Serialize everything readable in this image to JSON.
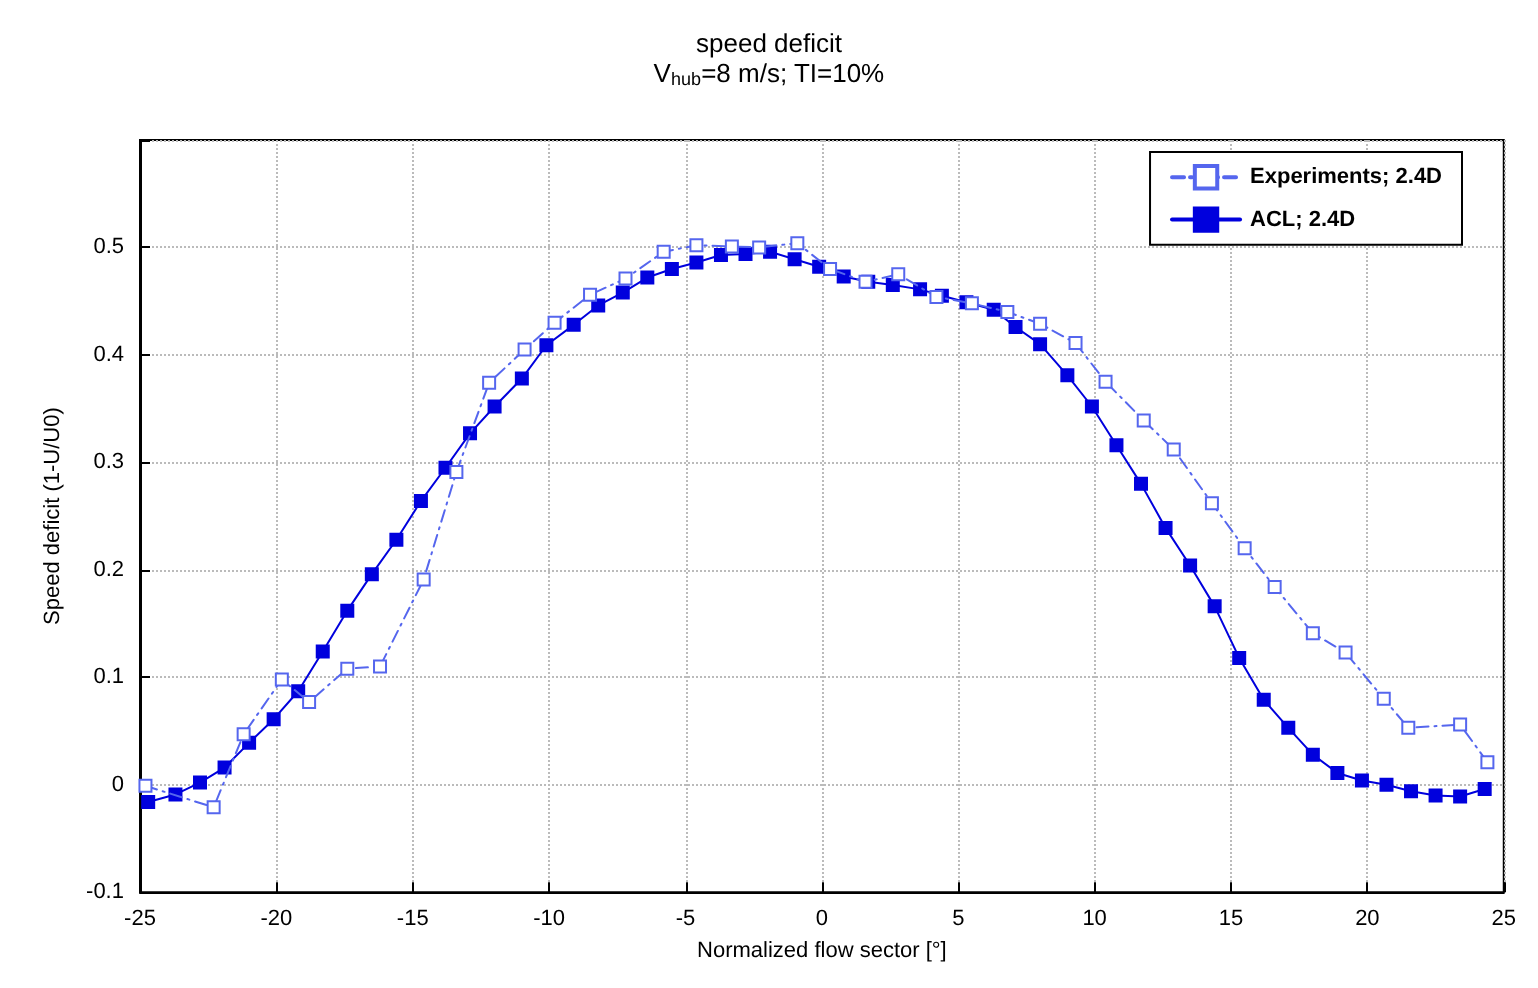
{
  "chart_data": {
    "type": "line",
    "title": "speed deficit",
    "subtitle": "V$_{hub}$=8 m/s; TI=10%",
    "xlabel": "Normalized flow sector [°]",
    "ylabel": "Speed deficit (1-U/U0)",
    "xlim": [
      -25,
      25
    ],
    "xticks": [
      -25,
      -20,
      -15,
      -10,
      -5,
      0,
      5,
      10,
      15,
      20,
      25
    ],
    "ylim": [
      -0.1,
      0.6
    ],
    "yticks": [
      -0.1,
      0,
      0.1,
      0.2,
      0.3,
      0.4,
      0.5,
      {
        "value": 0.6,
        "label": null
      }
    ],
    "grid": true,
    "legend": "top right",
    "series": [
      {
        "name": "Experiments; 2.4D",
        "color": "#5566ee",
        "marker": "square",
        "line_style": "dashed",
        "x": [
          -24.8,
          -22.3,
          -21.2,
          -19.8,
          -18.8,
          -17.4,
          -16.2,
          -14.6,
          -13.4,
          -12.2,
          -10.9,
          -9.8,
          -8.5,
          -7.2,
          -5.8,
          -4.6,
          -3.3,
          -2.3,
          -0.9,
          0.3,
          1.6,
          2.8,
          4.2,
          5.5,
          6.8,
          8.0,
          9.3,
          10.4,
          11.8,
          12.9,
          14.3,
          15.5,
          16.6,
          18.0,
          19.2,
          20.6,
          21.5,
          23.4,
          24.4
        ],
        "values": [
          -0.001,
          -0.021,
          0.047,
          0.098,
          0.077,
          0.108,
          0.11,
          0.191,
          0.291,
          0.374,
          0.405,
          0.43,
          0.456,
          0.471,
          0.496,
          0.502,
          0.501,
          0.5,
          0.504,
          0.48,
          0.468,
          0.475,
          0.454,
          0.448,
          0.44,
          0.429,
          0.411,
          0.375,
          0.339,
          0.312,
          0.262,
          0.22,
          0.184,
          0.141,
          0.123,
          0.08,
          0.053,
          0.056,
          0.021
        ]
      },
      {
        "name": "ACL; 2.4D",
        "color": "#0000dd",
        "marker": "square",
        "line_style": "solid",
        "x": [
          -24.7,
          -23.7,
          -22.8,
          -21.9,
          -21.0,
          -20.1,
          -19.2,
          -18.3,
          -17.4,
          -16.5,
          -15.6,
          -14.7,
          -13.8,
          -12.9,
          -12.0,
          -11.0,
          -10.1,
          -9.1,
          -8.2,
          -7.3,
          -6.4,
          -5.5,
          -4.6,
          -3.7,
          -2.8,
          -1.9,
          -1.0,
          -0.1,
          0.8,
          1.7,
          2.6,
          3.6,
          4.4,
          5.3,
          6.3,
          7.1,
          8.0,
          9.0,
          9.9,
          10.8,
          11.7,
          12.6,
          13.5,
          14.4,
          15.3,
          16.2,
          17.1,
          18.0,
          18.9,
          19.8,
          20.7,
          21.6,
          22.5,
          23.4,
          24.3
        ],
        "values": [
          -0.016,
          -0.009,
          0.002,
          0.016,
          0.039,
          0.061,
          0.087,
          0.124,
          0.162,
          0.196,
          0.228,
          0.264,
          0.295,
          0.327,
          0.352,
          0.378,
          0.409,
          0.428,
          0.446,
          0.458,
          0.472,
          0.48,
          0.486,
          0.493,
          0.494,
          0.496,
          0.489,
          0.482,
          0.473,
          0.468,
          0.465,
          0.461,
          0.455,
          0.449,
          0.442,
          0.426,
          0.41,
          0.381,
          0.352,
          0.316,
          0.28,
          0.239,
          0.204,
          0.166,
          0.118,
          0.079,
          0.053,
          0.028,
          0.011,
          0.004,
          0.0,
          -0.006,
          -0.01,
          -0.011,
          -0.004
        ]
      }
    ]
  }
}
